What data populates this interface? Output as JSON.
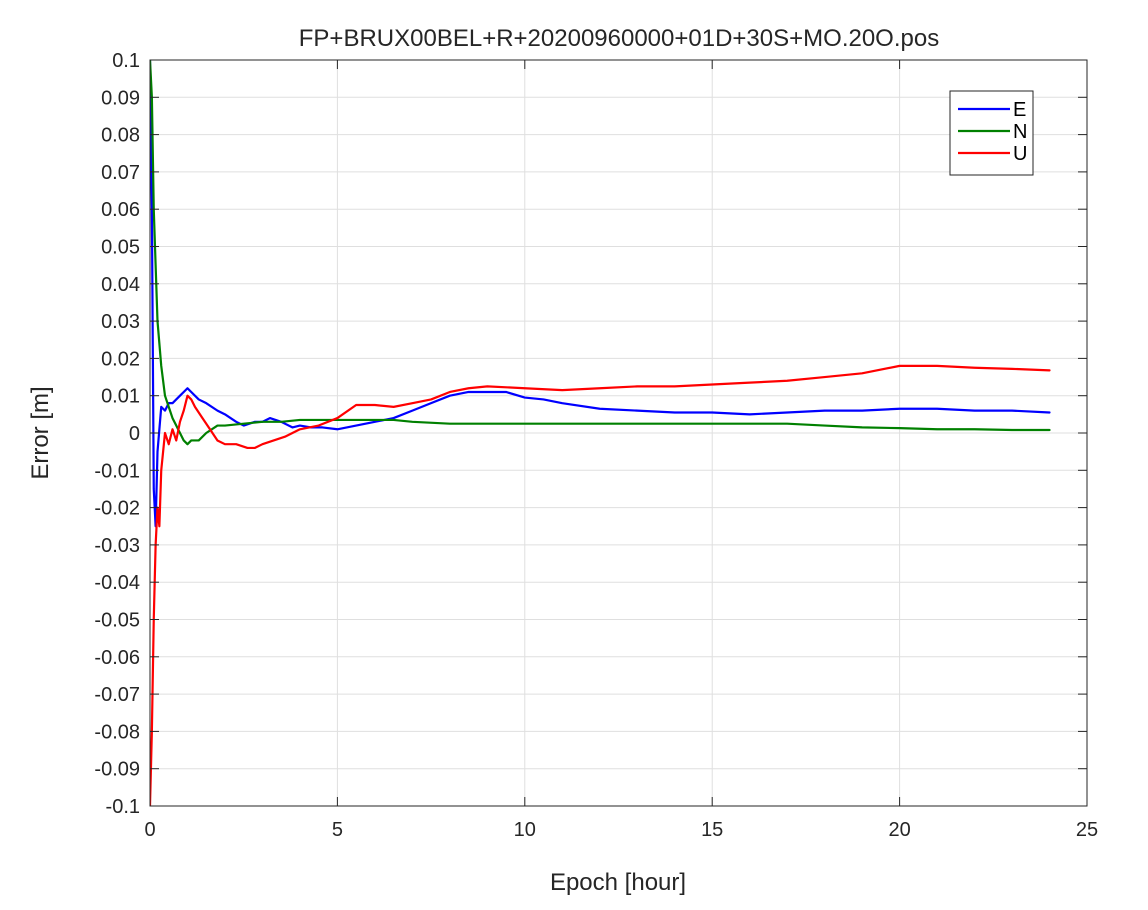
{
  "chart_data": {
    "type": "line",
    "title": "FP+BRUX00BEL+R+20200960000+01D+30S+MO.20O.pos",
    "xlabel": "Epoch [hour]",
    "ylabel": "Error [m]",
    "xlim": [
      0,
      25
    ],
    "ylim": [
      -0.1,
      0.1
    ],
    "x_ticks": [
      0,
      5,
      10,
      15,
      20,
      25
    ],
    "x_tick_labels": [
      "0",
      "5",
      "10",
      "15",
      "20",
      "25"
    ],
    "y_ticks": [
      0.1,
      0.09,
      0.08,
      0.07,
      0.06,
      0.05,
      0.04,
      0.03,
      0.02,
      0.01,
      0,
      -0.01,
      -0.02,
      -0.03,
      -0.04,
      -0.05,
      -0.06,
      -0.07,
      -0.08,
      -0.09,
      -0.1
    ],
    "y_tick_labels": [
      "0.1",
      "0.09",
      "0.08",
      "0.07",
      "0.06",
      "0.05",
      "0.04",
      "0.03",
      "0.02",
      "0.01",
      "0",
      "-0.01",
      "-0.02",
      "-0.03",
      "-0.04",
      "-0.05",
      "-0.06",
      "-0.07",
      "-0.08",
      "-0.09",
      "-0.1"
    ],
    "grid": true,
    "legend_position": "top-right",
    "series": [
      {
        "name": "E",
        "color": "#0000ff",
        "x": [
          0,
          0.05,
          0.1,
          0.15,
          0.2,
          0.3,
          0.4,
          0.5,
          0.6,
          0.7,
          0.8,
          0.9,
          1.0,
          1.1,
          1.3,
          1.5,
          1.8,
          2.0,
          2.3,
          2.5,
          2.8,
          3.0,
          3.2,
          3.5,
          3.8,
          4.0,
          4.3,
          4.6,
          5.0,
          5.5,
          6.0,
          6.5,
          7.0,
          7.5,
          8.0,
          8.5,
          9.0,
          9.5,
          10.0,
          10.5,
          11.0,
          12.0,
          13.0,
          14.0,
          15.0,
          16.0,
          17.0,
          18.0,
          19.0,
          20.0,
          21.0,
          22.0,
          23.0,
          24.0
        ],
        "y": [
          0.1,
          0.06,
          -0.015,
          -0.025,
          -0.005,
          0.007,
          0.006,
          0.008,
          0.008,
          0.009,
          0.01,
          0.011,
          0.012,
          0.011,
          0.009,
          0.008,
          0.006,
          0.005,
          0.003,
          0.002,
          0.003,
          0.003,
          0.004,
          0.003,
          0.0015,
          0.002,
          0.0015,
          0.0015,
          0.001,
          0.002,
          0.003,
          0.004,
          0.006,
          0.008,
          0.01,
          0.011,
          0.011,
          0.011,
          0.0095,
          0.009,
          0.008,
          0.0065,
          0.006,
          0.0055,
          0.0055,
          0.005,
          0.0055,
          0.006,
          0.006,
          0.0065,
          0.0065,
          0.006,
          0.006,
          0.0055
        ]
      },
      {
        "name": "N",
        "color": "#008000",
        "x": [
          0,
          0.05,
          0.1,
          0.15,
          0.2,
          0.3,
          0.4,
          0.5,
          0.6,
          0.7,
          0.8,
          0.9,
          1.0,
          1.1,
          1.3,
          1.5,
          1.8,
          2.0,
          2.5,
          3.0,
          3.5,
          4.0,
          4.5,
          5.0,
          5.5,
          6.0,
          6.5,
          7.0,
          8.0,
          9.0,
          10.0,
          11.0,
          12.0,
          13.0,
          14.0,
          15.0,
          16.0,
          17.0,
          18.0,
          19.0,
          20.0,
          21.0,
          22.0,
          23.0,
          24.0
        ],
        "y": [
          0.1,
          0.09,
          0.06,
          0.045,
          0.03,
          0.018,
          0.01,
          0.007,
          0.004,
          0.002,
          0.0,
          -0.002,
          -0.003,
          -0.002,
          -0.002,
          0.0,
          0.002,
          0.002,
          0.0025,
          0.003,
          0.003,
          0.0035,
          0.0035,
          0.0035,
          0.0035,
          0.0035,
          0.0035,
          0.003,
          0.0025,
          0.0025,
          0.0025,
          0.0025,
          0.0025,
          0.0025,
          0.0025,
          0.0025,
          0.0025,
          0.0025,
          0.002,
          0.0015,
          0.0013,
          0.001,
          0.001,
          0.0008,
          0.0008
        ]
      },
      {
        "name": "U",
        "color": "#ff0000",
        "x": [
          0,
          0.05,
          0.1,
          0.15,
          0.2,
          0.25,
          0.3,
          0.35,
          0.4,
          0.5,
          0.6,
          0.7,
          0.8,
          0.9,
          1.0,
          1.1,
          1.2,
          1.4,
          1.6,
          1.8,
          2.0,
          2.3,
          2.6,
          2.8,
          3.0,
          3.3,
          3.6,
          4.0,
          4.5,
          5.0,
          5.5,
          6.0,
          6.5,
          7.0,
          7.5,
          8.0,
          8.5,
          9.0,
          10.0,
          11.0,
          12.0,
          13.0,
          14.0,
          15.0,
          16.0,
          17.0,
          18.0,
          19.0,
          20.0,
          21.0,
          22.0,
          23.0,
          24.0
        ],
        "y": [
          -0.1,
          -0.08,
          -0.05,
          -0.03,
          -0.02,
          -0.025,
          -0.01,
          -0.005,
          0.0,
          -0.003,
          0.001,
          -0.002,
          0.003,
          0.006,
          0.01,
          0.009,
          0.007,
          0.004,
          0.001,
          -0.002,
          -0.003,
          -0.003,
          -0.004,
          -0.004,
          -0.003,
          -0.002,
          -0.001,
          0.001,
          0.002,
          0.004,
          0.0075,
          0.0075,
          0.007,
          0.008,
          0.009,
          0.011,
          0.012,
          0.0125,
          0.012,
          0.0115,
          0.012,
          0.0125,
          0.0125,
          0.013,
          0.0135,
          0.014,
          0.015,
          0.016,
          0.018,
          0.018,
          0.0175,
          0.0172,
          0.0168
        ]
      }
    ]
  }
}
